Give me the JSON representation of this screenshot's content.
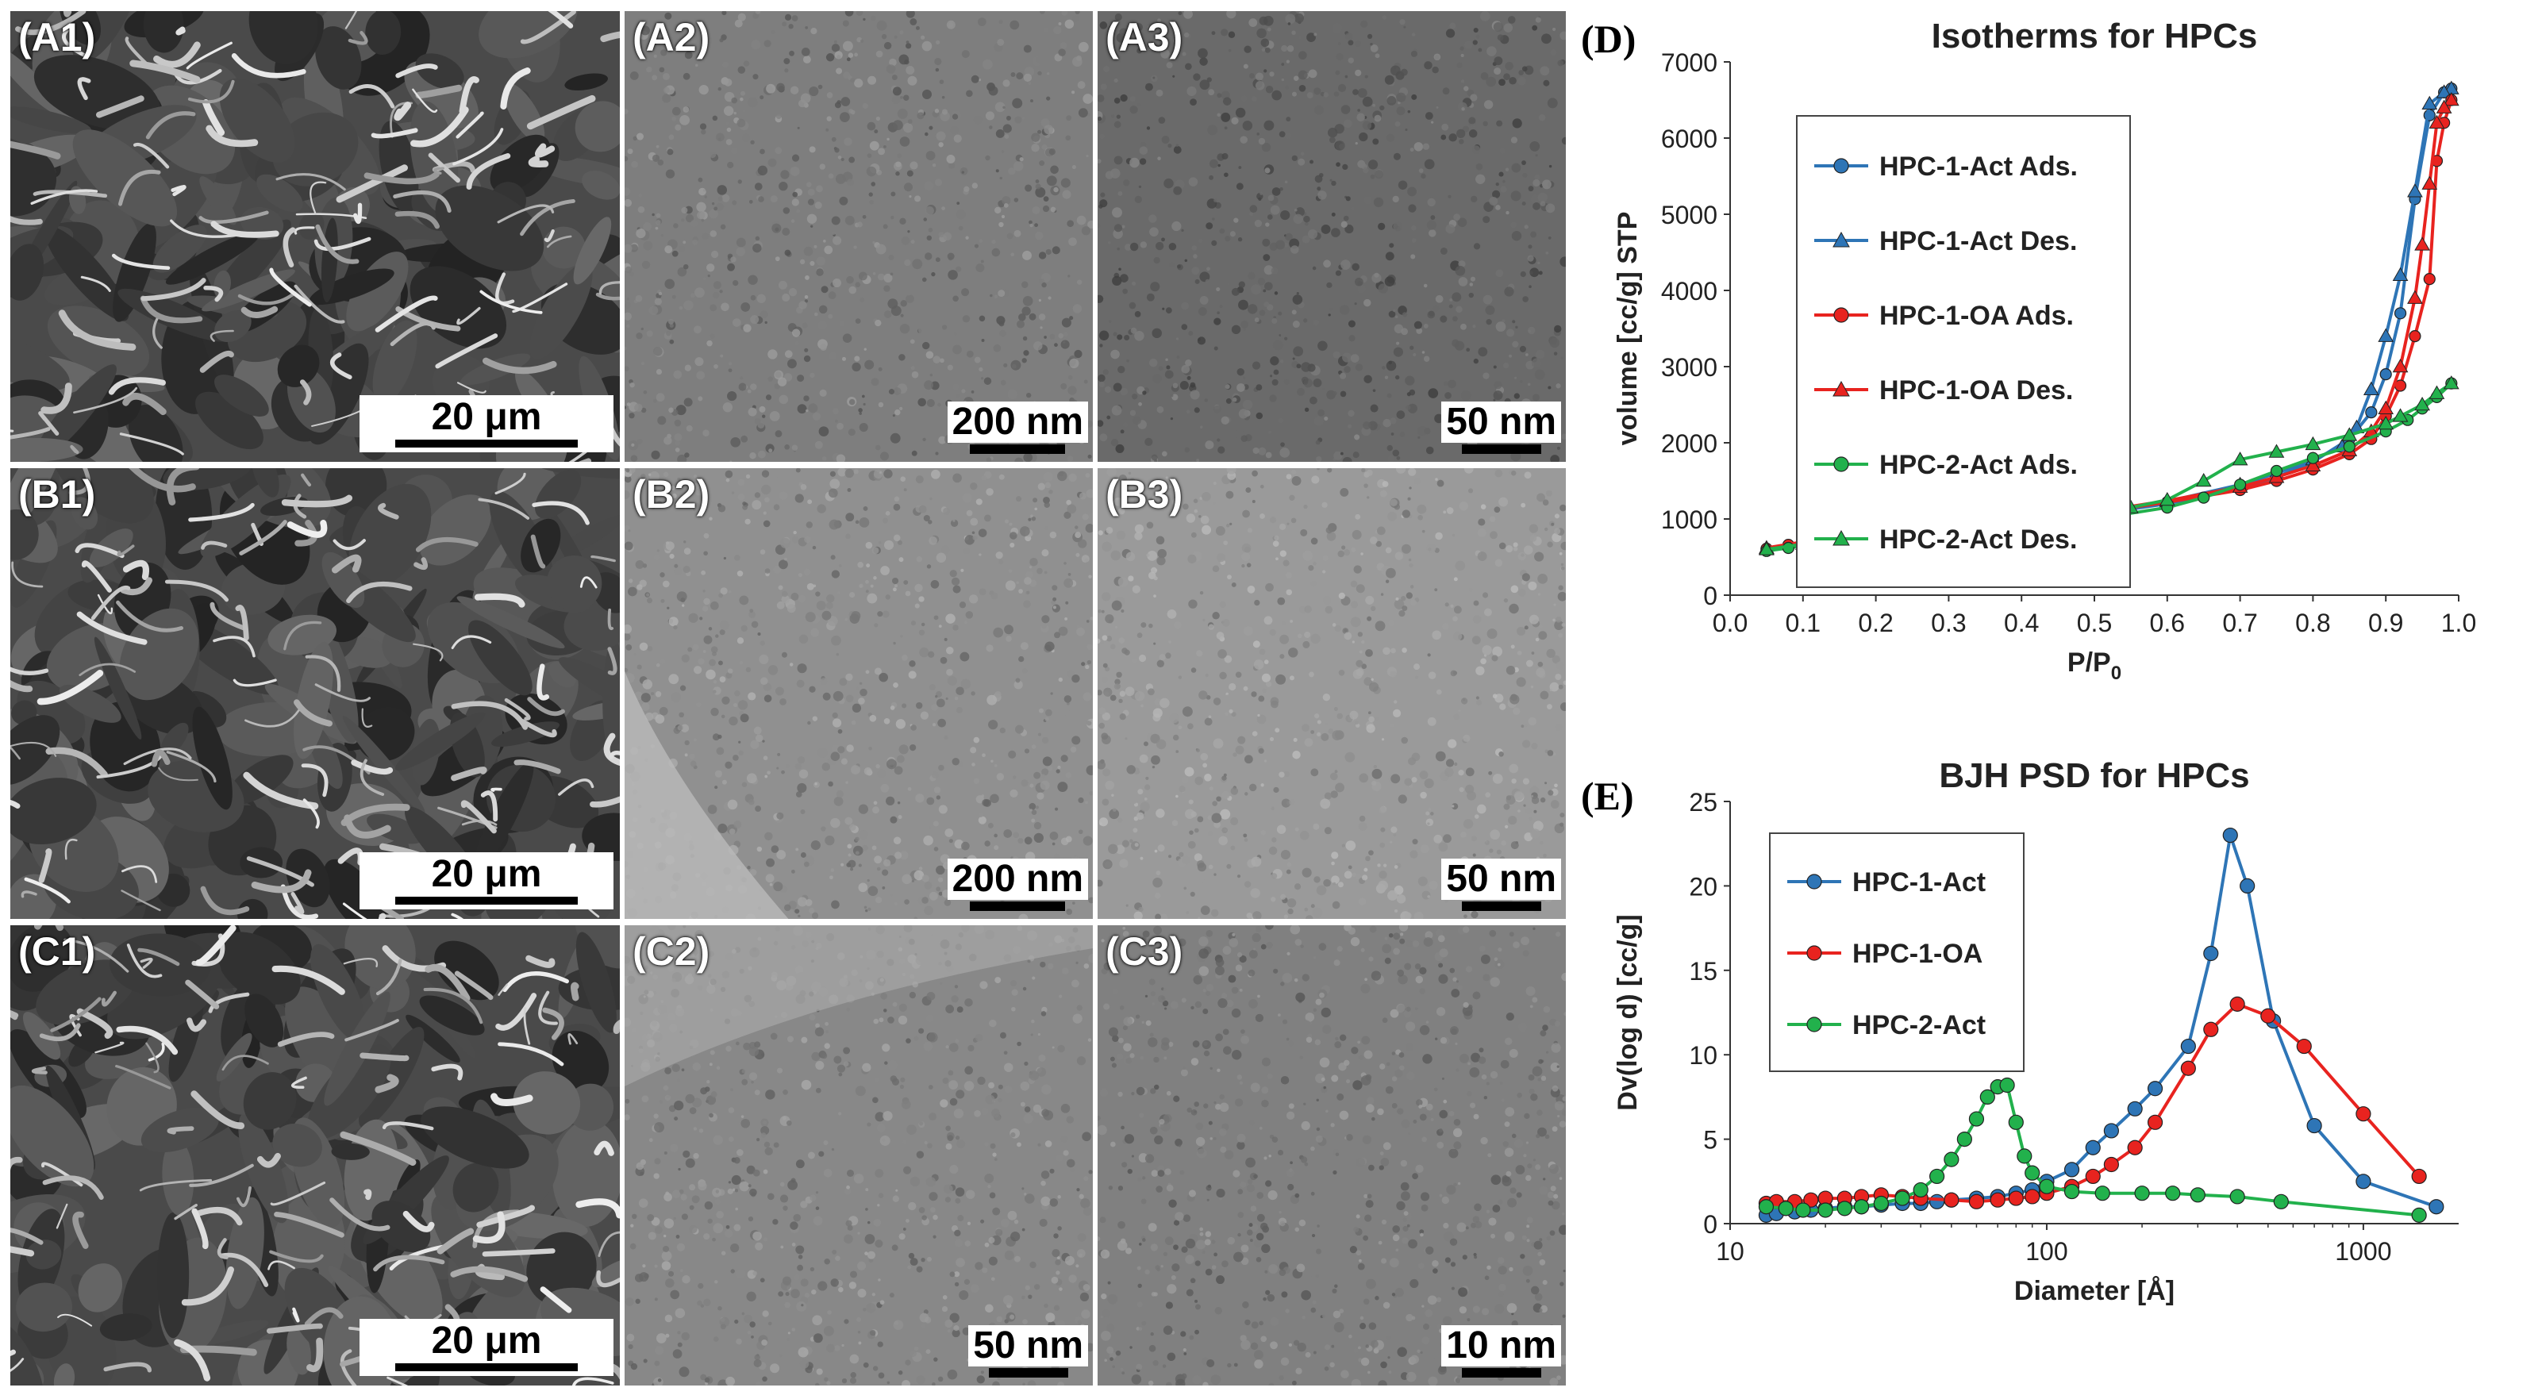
{
  "panels": [
    {
      "id": "A1",
      "label": "(A1)",
      "scale": "20 μm",
      "kind": "sem"
    },
    {
      "id": "A2",
      "label": "(A2)",
      "scale": "200 nm",
      "kind": "tem"
    },
    {
      "id": "A3",
      "label": "(A3)",
      "scale": "50 nm",
      "kind": "tem"
    },
    {
      "id": "B1",
      "label": "(B1)",
      "scale": "20 μm",
      "kind": "sem"
    },
    {
      "id": "B2",
      "label": "(B2)",
      "scale": "200 nm",
      "kind": "tem"
    },
    {
      "id": "B3",
      "label": "(B3)",
      "scale": "50 nm",
      "kind": "tem"
    },
    {
      "id": "C1",
      "label": "(C1)",
      "scale": "20 μm",
      "kind": "sem"
    },
    {
      "id": "C2",
      "label": "(C2)",
      "scale": "50 nm",
      "kind": "tem"
    },
    {
      "id": "C3",
      "label": "(C3)",
      "scale": "10 nm",
      "kind": "tem"
    }
  ],
  "colors": {
    "blue": "#2e75b6",
    "red": "#e8231f",
    "green": "#22b14c"
  },
  "chart_data": [
    {
      "panel_label": "(D)",
      "type": "line",
      "title": "Isotherms for HPCs",
      "xlabel": "P/P",
      "xlabel_sub": "0",
      "ylabel": "volume [cc/g] STP",
      "xlim": [
        0.0,
        1.0
      ],
      "ylim": [
        0,
        7000
      ],
      "xticks": [
        0.0,
        0.1,
        0.2,
        0.3,
        0.4,
        0.5,
        0.6,
        0.7,
        0.8,
        0.9,
        1.0
      ],
      "xtick_labels": [
        "0.0",
        "0.1",
        "0.2",
        "0.3",
        "0.4",
        "0.5",
        "0.6",
        "0.7",
        "0.8",
        "0.9",
        "1.0"
      ],
      "yticks": [
        0,
        1000,
        2000,
        3000,
        4000,
        5000,
        6000,
        7000
      ],
      "ytick_labels": [
        "0",
        "1000",
        "2000",
        "3000",
        "4000",
        "5000",
        "6000",
        "7000"
      ],
      "legend_position": "top-left",
      "series": [
        {
          "name": "HPC-1-Act  Ads.",
          "color": "#2e75b6",
          "marker": "circle",
          "x": [
            0.05,
            0.08,
            0.1,
            0.15,
            0.2,
            0.3,
            0.4,
            0.5,
            0.6,
            0.7,
            0.75,
            0.8,
            0.85,
            0.88,
            0.9,
            0.92,
            0.94,
            0.96,
            0.98,
            0.99
          ],
          "y": [
            600,
            650,
            680,
            730,
            780,
            860,
            950,
            1060,
            1200,
            1400,
            1550,
            1750,
            2050,
            2400,
            2900,
            3700,
            5200,
            6300,
            6600,
            6650
          ]
        },
        {
          "name": "HPC-1-Act  Des.",
          "color": "#2e75b6",
          "marker": "triangle",
          "x": [
            0.99,
            0.98,
            0.96,
            0.94,
            0.92,
            0.9,
            0.88,
            0.86,
            0.84,
            0.8,
            0.75,
            0.7,
            0.6,
            0.5,
            0.4,
            0.3,
            0.2,
            0.1,
            0.05
          ],
          "y": [
            6650,
            6600,
            6450,
            5300,
            4200,
            3400,
            2700,
            2200,
            1950,
            1780,
            1600,
            1450,
            1230,
            1080,
            960,
            870,
            790,
            690,
            610
          ]
        },
        {
          "name": "HPC-1-OA  Ads.",
          "color": "#e8231f",
          "marker": "circle",
          "x": [
            0.05,
            0.08,
            0.1,
            0.15,
            0.2,
            0.3,
            0.4,
            0.5,
            0.6,
            0.7,
            0.75,
            0.8,
            0.85,
            0.88,
            0.9,
            0.92,
            0.94,
            0.96,
            0.97,
            0.98,
            0.99
          ],
          "y": [
            610,
            660,
            690,
            740,
            790,
            870,
            960,
            1080,
            1220,
            1380,
            1500,
            1650,
            1850,
            2050,
            2350,
            2750,
            3400,
            4150,
            5700,
            6200,
            6500
          ]
        },
        {
          "name": "HPC-1-OA  Des.",
          "color": "#e8231f",
          "marker": "triangle",
          "x": [
            0.99,
            0.98,
            0.97,
            0.96,
            0.95,
            0.94,
            0.92,
            0.9,
            0.88,
            0.85,
            0.8,
            0.75,
            0.7,
            0.6,
            0.5,
            0.4,
            0.3,
            0.2,
            0.1,
            0.05
          ],
          "y": [
            6500,
            6400,
            6200,
            5400,
            4600,
            3900,
            3000,
            2450,
            2150,
            1900,
            1700,
            1550,
            1420,
            1240,
            1090,
            970,
            880,
            800,
            700,
            620
          ]
        },
        {
          "name": "HPC-2-Act  Ads.",
          "color": "#22b14c",
          "marker": "circle",
          "x": [
            0.05,
            0.08,
            0.1,
            0.15,
            0.2,
            0.3,
            0.4,
            0.5,
            0.6,
            0.65,
            0.7,
            0.75,
            0.8,
            0.85,
            0.9,
            0.93,
            0.95,
            0.97,
            0.99
          ],
          "y": [
            580,
            620,
            650,
            700,
            740,
            810,
            890,
            1000,
            1150,
            1280,
            1450,
            1630,
            1800,
            1950,
            2150,
            2300,
            2450,
            2600,
            2780
          ]
        },
        {
          "name": "HPC-2-Act  Des.",
          "color": "#22b14c",
          "marker": "triangle",
          "x": [
            0.99,
            0.97,
            0.95,
            0.92,
            0.9,
            0.85,
            0.8,
            0.75,
            0.7,
            0.65,
            0.6,
            0.55,
            0.5,
            0.4,
            0.3,
            0.2,
            0.1,
            0.05
          ],
          "y": [
            2780,
            2650,
            2500,
            2350,
            2250,
            2100,
            1980,
            1880,
            1780,
            1500,
            1250,
            1150,
            1060,
            920,
            830,
            760,
            670,
            600
          ]
        }
      ]
    },
    {
      "panel_label": "(E)",
      "type": "line",
      "title": "BJH PSD for HPCs",
      "xlabel": "Diameter [Å]",
      "ylabel": "Dv(log d) [cc/g]",
      "xscale": "log",
      "xlim": [
        10,
        2000
      ],
      "ylim": [
        0,
        25
      ],
      "xticks": [
        10,
        100,
        1000
      ],
      "xtick_labels": [
        "10",
        "100",
        "1000"
      ],
      "yticks": [
        0,
        5,
        10,
        15,
        20,
        25
      ],
      "ytick_labels": [
        "0",
        "5",
        "10",
        "15",
        "20",
        "25"
      ],
      "legend_position": "top-left",
      "series": [
        {
          "name": "HPC-1-Act",
          "color": "#2e75b6",
          "marker": "circle",
          "x": [
            13,
            14,
            16,
            18,
            20,
            23,
            26,
            30,
            35,
            40,
            45,
            50,
            60,
            70,
            80,
            90,
            100,
            120,
            140,
            160,
            190,
            220,
            280,
            330,
            380,
            430,
            520,
            700,
            1000,
            1700
          ],
          "y": [
            0.5,
            0.6,
            0.7,
            0.8,
            0.9,
            1.0,
            1.0,
            1.1,
            1.2,
            1.2,
            1.3,
            1.4,
            1.5,
            1.6,
            1.8,
            2.0,
            2.5,
            3.2,
            4.5,
            5.5,
            6.8,
            8.0,
            10.5,
            16.0,
            23.0,
            20.0,
            12.0,
            5.8,
            2.5,
            1.0
          ]
        },
        {
          "name": "HPC-1-OA",
          "color": "#e8231f",
          "marker": "circle",
          "x": [
            13,
            14,
            16,
            18,
            20,
            23,
            26,
            30,
            35,
            40,
            50,
            60,
            70,
            80,
            90,
            100,
            120,
            140,
            160,
            190,
            220,
            280,
            330,
            400,
            500,
            650,
            1000,
            1500
          ],
          "y": [
            1.2,
            1.3,
            1.3,
            1.4,
            1.5,
            1.5,
            1.6,
            1.7,
            1.6,
            1.5,
            1.4,
            1.3,
            1.4,
            1.5,
            1.6,
            1.8,
            2.2,
            2.8,
            3.5,
            4.5,
            6.0,
            9.2,
            11.5,
            13.0,
            12.3,
            10.5,
            6.5,
            2.8
          ]
        },
        {
          "name": "HPC-2-Act",
          "color": "#22b14c",
          "marker": "circle",
          "x": [
            13,
            15,
            17,
            20,
            23,
            26,
            30,
            35,
            40,
            45,
            50,
            55,
            60,
            65,
            70,
            75,
            80,
            85,
            90,
            100,
            120,
            150,
            200,
            250,
            300,
            400,
            550,
            1500
          ],
          "y": [
            1.0,
            0.9,
            0.8,
            0.8,
            0.9,
            1.0,
            1.2,
            1.5,
            2.0,
            2.8,
            3.8,
            5.0,
            6.2,
            7.5,
            8.1,
            8.2,
            6.0,
            4.0,
            3.0,
            2.2,
            1.9,
            1.8,
            1.8,
            1.8,
            1.7,
            1.6,
            1.3,
            0.5
          ]
        }
      ]
    }
  ]
}
